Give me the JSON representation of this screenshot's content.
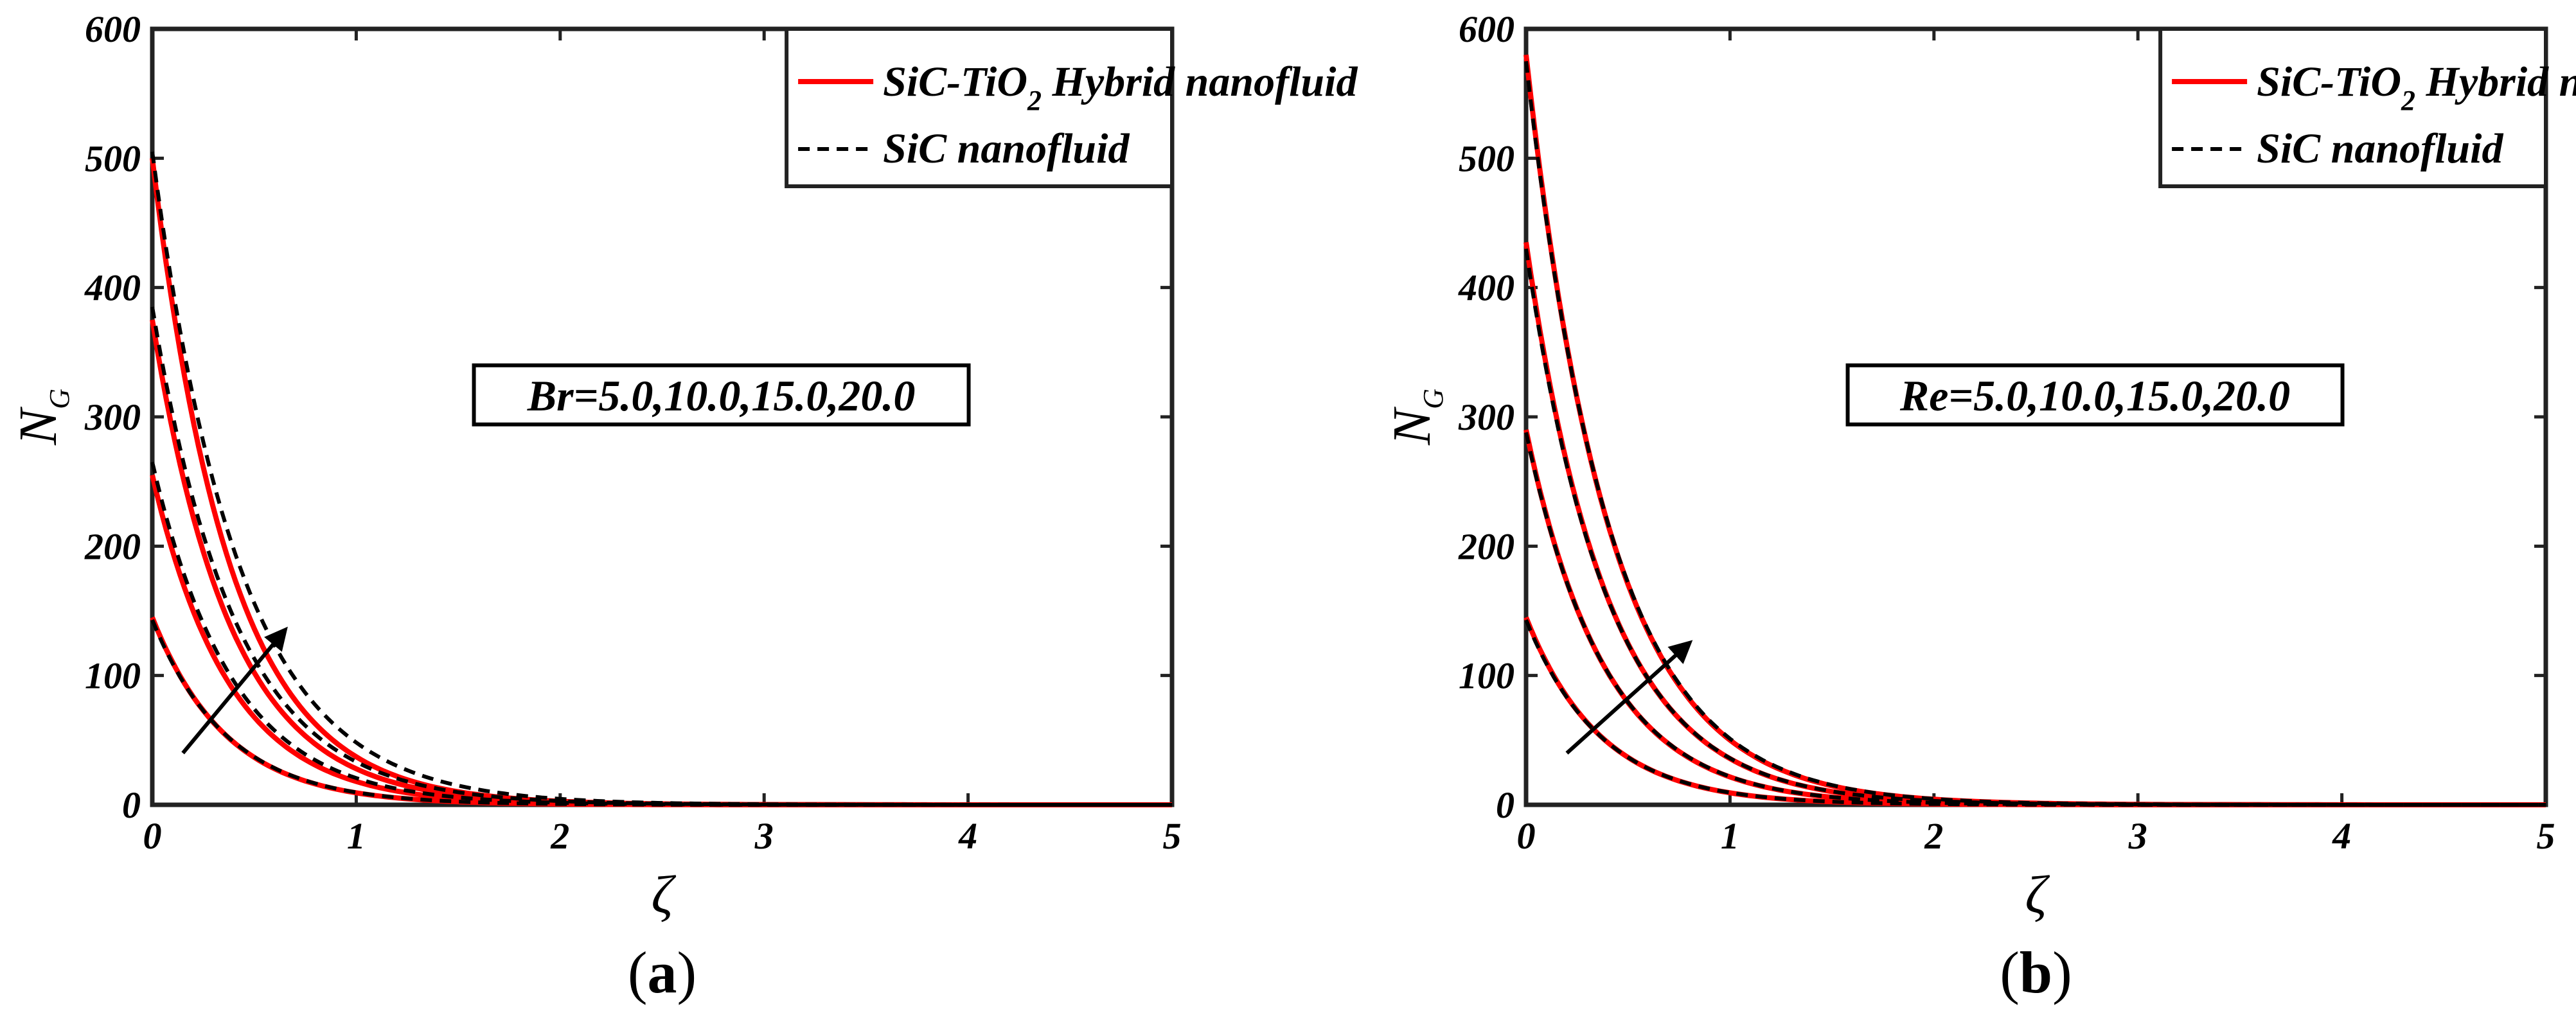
{
  "chart_data": [
    {
      "type": "line",
      "panel_label": "a",
      "xlabel": "ζ",
      "ylabel": "N",
      "ylabel_sub": "G",
      "xlim": [
        0,
        5
      ],
      "ylim": [
        0,
        600
      ],
      "xticks": [
        0,
        1,
        2,
        3,
        4,
        5
      ],
      "yticks": [
        0,
        100,
        200,
        300,
        400,
        500,
        600
      ],
      "legend": {
        "position": "top-right",
        "entries": [
          {
            "name": "SiC-TiO",
            "sub": "2",
            "rest": " Hybrid nanofluid",
            "color": "#ff0000",
            "style": "solid"
          },
          {
            "name": "SiC nanofluid",
            "sub": "",
            "rest": "",
            "color": "#000000",
            "style": "dashed"
          }
        ]
      },
      "annotation": "Br=5.0,10.0,15.0,20.0",
      "arrow": {
        "from": [
          0.15,
          40
        ],
        "to": [
          0.65,
          135
        ]
      },
      "curves": [
        {
          "param": "5.0",
          "hybrid": {
            "y0": 145,
            "k": 2.75
          },
          "sic": {
            "y0": 143,
            "k": 2.7
          }
        },
        {
          "param": "10.0",
          "hybrid": {
            "y0": 255,
            "k": 2.65
          },
          "sic": {
            "y0": 265,
            "k": 2.55
          }
        },
        {
          "param": "15.0",
          "hybrid": {
            "y0": 375,
            "k": 2.6
          },
          "sic": {
            "y0": 385,
            "k": 2.45
          }
        },
        {
          "param": "20.0",
          "hybrid": {
            "y0": 500,
            "k": 2.6
          },
          "sic": {
            "y0": 505,
            "k": 2.35
          }
        }
      ]
    },
    {
      "type": "line",
      "panel_label": "b",
      "xlabel": "ζ",
      "ylabel": "N",
      "ylabel_sub": "G",
      "xlim": [
        0,
        5
      ],
      "ylim": [
        0,
        600
      ],
      "xticks": [
        0,
        1,
        2,
        3,
        4,
        5
      ],
      "yticks": [
        0,
        100,
        200,
        300,
        400,
        500,
        600
      ],
      "legend": {
        "position": "top-right",
        "entries": [
          {
            "name": "SiC-TiO",
            "sub": "2",
            "rest": " Hybrid nanofluid",
            "color": "#ff0000",
            "style": "solid"
          },
          {
            "name": "SiC nanofluid",
            "sub": "",
            "rest": "",
            "color": "#000000",
            "style": "dashed"
          }
        ]
      },
      "annotation": "Re=5.0,10.0,15.0,20.0",
      "arrow": {
        "from": [
          0.2,
          40
        ],
        "to": [
          0.8,
          125
        ]
      },
      "curves": [
        {
          "param": "5.0",
          "hybrid": {
            "y0": 145,
            "k": 2.75
          },
          "sic": {
            "y0": 143,
            "k": 2.72
          }
        },
        {
          "param": "10.0",
          "hybrid": {
            "y0": 290,
            "k": 2.6
          },
          "sic": {
            "y0": 288,
            "k": 2.58
          }
        },
        {
          "param": "15.0",
          "hybrid": {
            "y0": 435,
            "k": 2.5
          },
          "sic": {
            "y0": 430,
            "k": 2.48
          }
        },
        {
          "param": "20.0",
          "hybrid": {
            "y0": 580,
            "k": 2.45
          },
          "sic": {
            "y0": 575,
            "k": 2.42
          }
        }
      ]
    }
  ]
}
